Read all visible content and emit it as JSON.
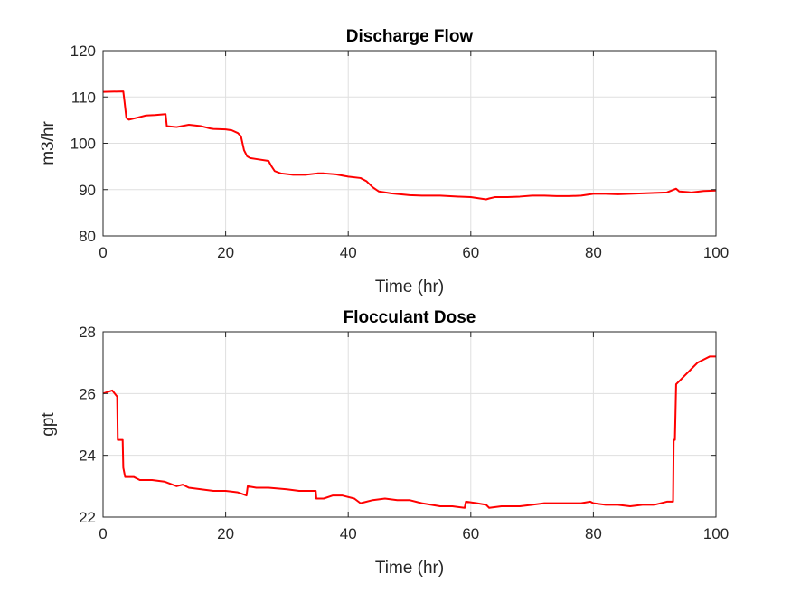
{
  "figure": {
    "background": "#ffffff",
    "axis_color": "#262626",
    "grid_color": "#dfdfdf"
  },
  "chart_data": [
    {
      "type": "line",
      "title": "Discharge Flow",
      "xlabel": "Time (hr)",
      "ylabel": "m3/hr",
      "xlim": [
        0,
        100
      ],
      "ylim": [
        80,
        120
      ],
      "grid": true,
      "xticks": [
        0,
        20,
        40,
        60,
        80,
        100
      ],
      "yticks": [
        80,
        90,
        100,
        110,
        120
      ],
      "series": [
        {
          "color": "#ff0000",
          "x": [
            0,
            3.3,
            3.5,
            3.8,
            4.2,
            5.5,
            7,
            8.5,
            10.2,
            10.4,
            12,
            14,
            16,
            17.5,
            18,
            20,
            21,
            22,
            22.5,
            23,
            23.5,
            24,
            25,
            27,
            27.5,
            28,
            29,
            31,
            33,
            35,
            36,
            38,
            40,
            42,
            43,
            44,
            45,
            47,
            50,
            52,
            55,
            58,
            60,
            62.5,
            63,
            64,
            66,
            68,
            70,
            72,
            74,
            76,
            78,
            80,
            82,
            84,
            86,
            88,
            90,
            92,
            93.5,
            94,
            96,
            98,
            100
          ],
          "y": [
            111.1,
            111.2,
            109,
            105.5,
            105.1,
            105.5,
            106,
            106.1,
            106.3,
            103.7,
            103.5,
            104,
            103.7,
            103.2,
            103.1,
            103,
            102.8,
            102.2,
            101.5,
            98.5,
            97.2,
            96.8,
            96.6,
            96.2,
            95,
            94,
            93.5,
            93.2,
            93.2,
            93.5,
            93.5,
            93.3,
            92.8,
            92.5,
            91.8,
            90.5,
            89.6,
            89.2,
            88.8,
            88.7,
            88.7,
            88.5,
            88.4,
            87.9,
            88.1,
            88.4,
            88.4,
            88.5,
            88.7,
            88.7,
            88.6,
            88.6,
            88.7,
            89.1,
            89.1,
            89.0,
            89.1,
            89.2,
            89.3,
            89.4,
            90.2,
            89.6,
            89.4,
            89.7,
            89.8
          ]
        }
      ]
    },
    {
      "type": "line",
      "title": "Flocculant Dose",
      "xlabel": "Time (hr)",
      "ylabel": "gpt",
      "xlim": [
        0,
        100
      ],
      "ylim": [
        22,
        28
      ],
      "grid": true,
      "xticks": [
        0,
        20,
        40,
        60,
        80,
        100
      ],
      "yticks": [
        22,
        24,
        26,
        28
      ],
      "series": [
        {
          "color": "#ff0000",
          "x": [
            0,
            1.5,
            2.3,
            2.4,
            3.2,
            3.3,
            3.6,
            5,
            6,
            8,
            10,
            12,
            13,
            14,
            16,
            18,
            20,
            22,
            23.4,
            23.6,
            25,
            27,
            30,
            32,
            34.7,
            34.8,
            36,
            37.5,
            39,
            41,
            42,
            44,
            46,
            48,
            50,
            52,
            55,
            57,
            59,
            59.2,
            61,
            62.5,
            63,
            65,
            68,
            70,
            72,
            74,
            76,
            78,
            79.5,
            80,
            82,
            84,
            86,
            88,
            90,
            92,
            93,
            93.1,
            93.3,
            93.5,
            94,
            95,
            96,
            97,
            98,
            99,
            100
          ],
          "y": [
            26.0,
            26.1,
            25.9,
            24.5,
            24.5,
            23.6,
            23.3,
            23.3,
            23.2,
            23.2,
            23.15,
            23.0,
            23.05,
            22.95,
            22.9,
            22.85,
            22.85,
            22.8,
            22.7,
            23.0,
            22.95,
            22.95,
            22.9,
            22.85,
            22.85,
            22.6,
            22.6,
            22.7,
            22.7,
            22.6,
            22.45,
            22.55,
            22.6,
            22.55,
            22.55,
            22.45,
            22.35,
            22.35,
            22.3,
            22.5,
            22.45,
            22.4,
            22.3,
            22.35,
            22.35,
            22.4,
            22.45,
            22.45,
            22.45,
            22.45,
            22.5,
            22.45,
            22.4,
            22.4,
            22.35,
            22.4,
            22.4,
            22.5,
            22.5,
            24.5,
            24.5,
            26.3,
            26.4,
            26.6,
            26.8,
            27.0,
            27.1,
            27.2,
            27.2
          ]
        }
      ]
    }
  ]
}
